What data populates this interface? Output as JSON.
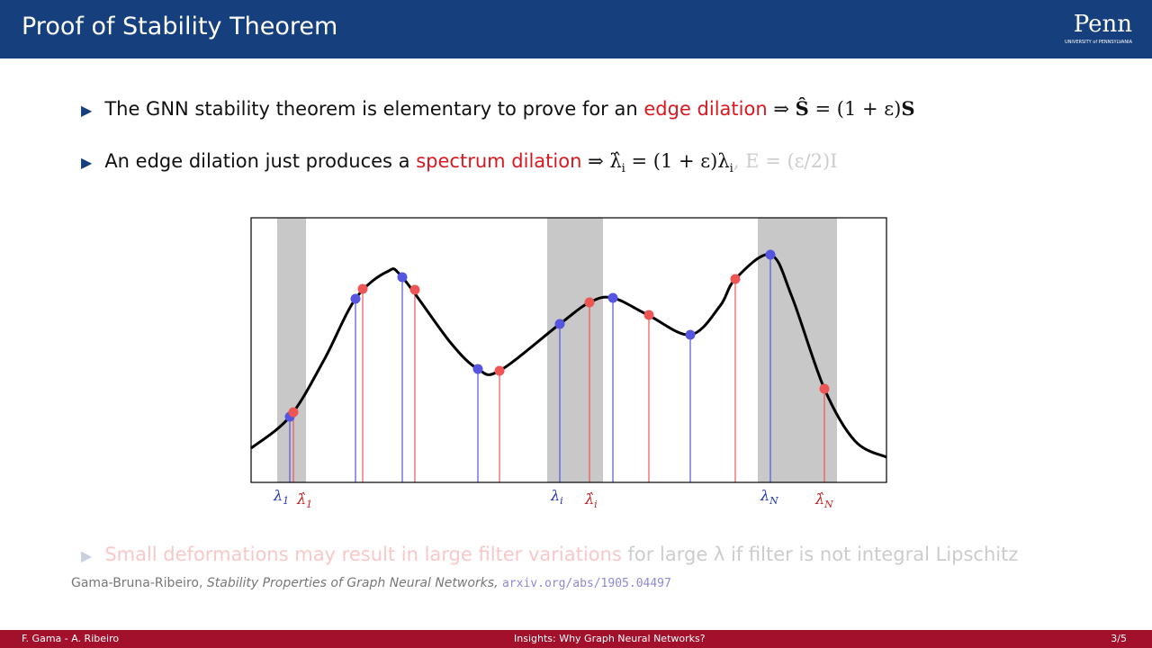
{
  "header": {
    "title": "Proof of Stability Theorem",
    "logo": "Penn",
    "logo_sub": "UNIVERSITY of PENNSYLVANIA"
  },
  "bullets": [
    {
      "text": "The GNN stability theorem is elementary to prove for an",
      "highlight": "edge dilation",
      "math": [
        "⇒",
        "Ŝ",
        "= (1 + ε)",
        "S"
      ]
    },
    {
      "text": "An edge dilation just produces a",
      "highlight": "spectrum dilation",
      "math": [
        "⇒ λ̂",
        "i",
        " = (1 + ε)λ",
        "i",
        ",",
        "E = (ε/2)I"
      ]
    }
  ],
  "figure": {
    "labels": [
      {
        "base": "λ",
        "sub": "1"
      },
      {
        "base": "λ̂",
        "sub": "1"
      },
      {
        "base": "λ",
        "sub": "i"
      },
      {
        "base": "λ̂",
        "sub": "i"
      },
      {
        "base": "λ",
        "sub": "N"
      },
      {
        "base": "λ̂",
        "sub": "N"
      }
    ]
  },
  "faded_bullet": {
    "highlight": "Small deformations may result in large filter variations",
    "text": "for large λ if filter is not integral Lipschitz"
  },
  "citation": {
    "authors": "Gama-Bruna-Ribeiro,",
    "title": "Stability Properties of Graph Neural Networks,",
    "url": "arxiv.org/abs/1905.04497"
  },
  "footer": {
    "left": "F. Gama - A. Ribeiro",
    "center": "Insights: Why Graph Neural Networks?",
    "right": "3/5"
  }
}
